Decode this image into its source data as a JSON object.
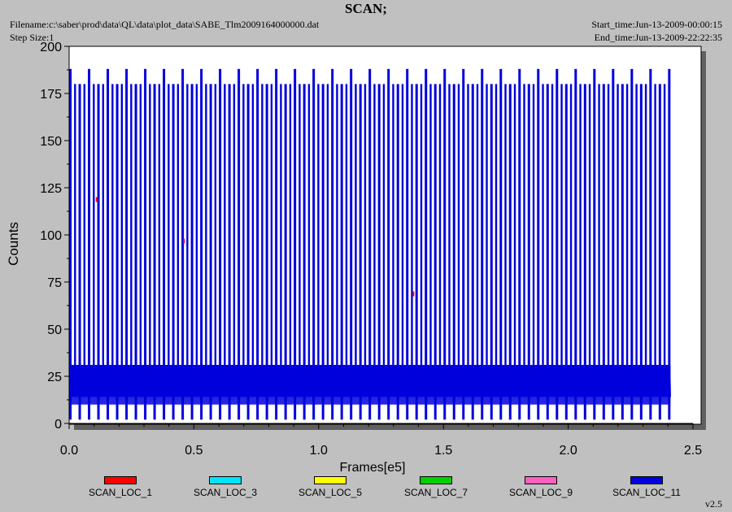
{
  "header": {
    "title": "SCAN;",
    "filename": "Filename:c:\\saber\\prod\\data\\QL\\data\\plot_data\\SABE_Tlm2009164000000.dat",
    "step_size": "Step Size:1",
    "start_time": "Start_time:Jun-13-2009-00:00:15",
    "end_time": "End_time:Jun-13-2009-22:22:35"
  },
  "footer": {
    "version": "v2.5"
  },
  "colors": {
    "background": "#c0c0c0",
    "plot_background": "#ffffff",
    "shadow": "#606060"
  },
  "chart_data": {
    "type": "line",
    "xlabel": "Frames[e5]",
    "ylabel": "Counts",
    "xlim": [
      0,
      2.5
    ],
    "ylim": [
      0,
      200
    ],
    "x_ticks": [
      "0.0",
      "0.5",
      "1.0",
      "1.5",
      "2.0",
      "2.5"
    ],
    "y_ticks": [
      "0",
      "25",
      "50",
      "75",
      "100",
      "125",
      "150",
      "175",
      "200"
    ],
    "grid": false,
    "legend_position": "bottom",
    "series": [
      {
        "name": "SCAN_LOC_1",
        "color": "#ff0000",
        "baseline": 10,
        "spike_x": [
          0.11,
          0.46,
          1.38
        ],
        "spike_y": [
          120,
          98,
          70
        ]
      },
      {
        "name": "SCAN_LOC_3",
        "color": "#00e5ff",
        "baseline": 10,
        "spike_x": [],
        "spike_y": []
      },
      {
        "name": "SCAN_LOC_5",
        "color": "#ffff00",
        "baseline": 10,
        "spike_x": [],
        "spike_y": []
      },
      {
        "name": "SCAN_LOC_7",
        "color": "#00d000",
        "baseline": 10,
        "spike_x": [],
        "spike_y": []
      },
      {
        "name": "SCAN_LOC_9",
        "color": "#ff60c0",
        "baseline": 10,
        "spike_x": [],
        "spike_y": []
      },
      {
        "name": "SCAN_LOC_11",
        "color": "#0000dd",
        "x_start": 0.0,
        "x_end": 2.41,
        "band_low": 14,
        "band_high": 31,
        "peak_high": 188,
        "peak_low": 180,
        "period": 0.0375,
        "dip": 2,
        "floor": 10
      }
    ]
  }
}
